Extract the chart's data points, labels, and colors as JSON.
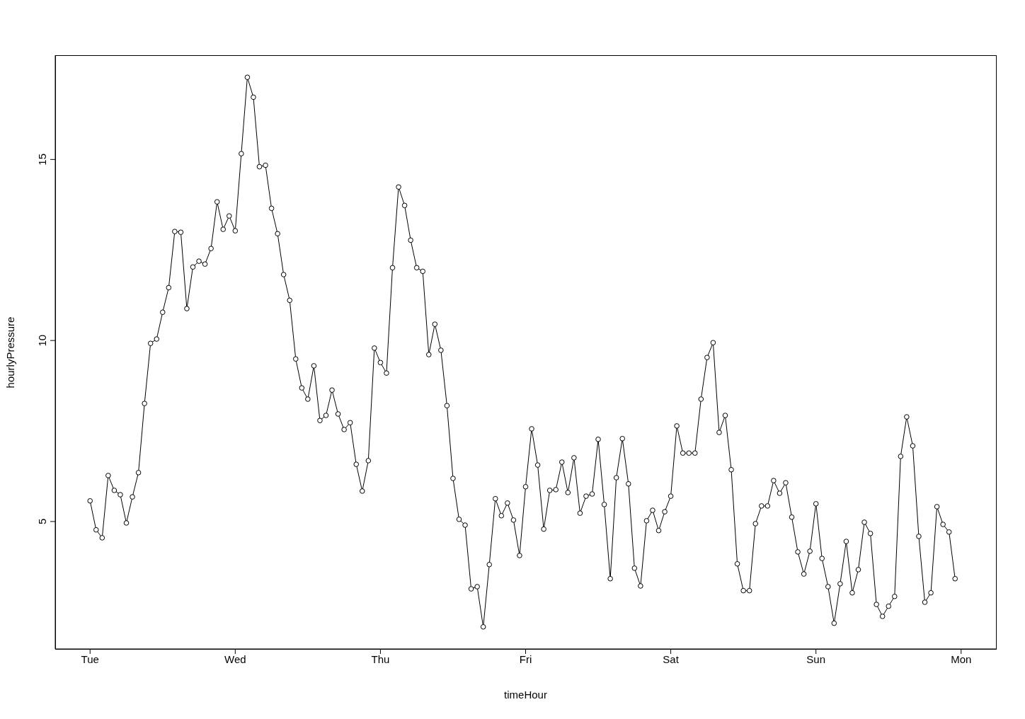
{
  "chart_data": {
    "type": "line",
    "xlabel": "timeHour",
    "ylabel": "hourlyPressure",
    "color": "#000000",
    "marker": "circle",
    "line_style": "solid",
    "categories": [
      "Tue",
      null,
      null,
      null,
      null,
      null,
      null,
      null,
      null,
      null,
      null,
      null,
      null,
      null,
      null,
      null,
      null,
      null,
      null,
      null,
      null,
      null,
      null,
      null,
      "Wed",
      null,
      null,
      null,
      null,
      null,
      null,
      null,
      null,
      null,
      null,
      null,
      null,
      null,
      null,
      null,
      null,
      null,
      null,
      null,
      null,
      null,
      null,
      null,
      "Thu",
      null,
      null,
      null,
      null,
      null,
      null,
      null,
      null,
      null,
      null,
      null,
      null,
      null,
      null,
      null,
      null,
      null,
      null,
      null,
      null,
      null,
      null,
      null,
      "Fri",
      null,
      null,
      null,
      null,
      null,
      null,
      null,
      null,
      null,
      null,
      null,
      null,
      null,
      null,
      null,
      null,
      null,
      null,
      null,
      null,
      null,
      null,
      null,
      "Sat",
      null,
      null,
      null,
      null,
      null,
      null,
      null,
      null,
      null,
      null,
      null,
      null,
      null,
      null,
      null,
      null,
      null,
      null,
      null,
      null,
      null,
      null,
      null,
      "Sun",
      null,
      null,
      null,
      null,
      null,
      null,
      null,
      null,
      null,
      null,
      null,
      null,
      null,
      null,
      null,
      null,
      null,
      null,
      null,
      null,
      null,
      null,
      null,
      "Mon"
    ],
    "values": [
      5.57,
      4.77,
      4.55,
      6.27,
      5.86,
      5.74,
      4.96,
      5.68,
      6.35,
      8.26,
      9.92,
      10.04,
      10.78,
      11.46,
      13.01,
      12.99,
      10.88,
      12.03,
      12.19,
      12.11,
      12.54,
      13.83,
      13.07,
      13.44,
      13.03,
      15.16,
      17.27,
      16.72,
      14.8,
      14.84,
      13.65,
      12.95,
      11.82,
      11.11,
      9.49,
      8.69,
      8.38,
      9.3,
      7.79,
      7.93,
      8.63,
      7.97,
      7.54,
      7.73,
      6.58,
      5.84,
      6.68,
      9.79,
      9.39,
      9.1,
      12.01,
      14.24,
      13.73,
      12.77,
      12.01,
      11.91,
      9.61,
      10.45,
      9.73,
      8.2,
      6.19,
      5.06,
      4.9,
      3.14,
      3.2,
      2.09,
      3.81,
      5.63,
      5.16,
      5.51,
      5.04,
      4.06,
      5.96,
      7.56,
      6.56,
      4.79,
      5.86,
      5.88,
      6.64,
      5.8,
      6.76,
      5.23,
      5.7,
      5.76,
      7.27,
      5.47,
      3.42,
      6.21,
      7.29,
      6.04,
      3.71,
      3.22,
      5.02,
      5.31,
      4.75,
      5.27,
      5.7,
      7.64,
      6.89,
      6.89,
      6.89,
      8.38,
      9.53,
      9.94,
      7.46,
      7.93,
      6.43,
      3.83,
      3.09,
      3.09,
      4.94,
      5.43,
      5.43,
      6.13,
      5.78,
      6.07,
      5.12,
      4.16,
      3.55,
      4.18,
      5.49,
      3.98,
      3.2,
      2.19,
      3.28,
      4.45,
      3.03,
      3.67,
      4.98,
      4.67,
      2.71,
      2.38,
      2.66,
      2.93,
      6.8,
      7.89,
      7.09,
      4.59,
      2.77,
      3.03,
      5.41,
      4.92,
      4.71,
      3.42,
      null
    ],
    "ylim": [
      1.48,
      17.88
    ],
    "yticks": [
      5,
      10,
      15
    ]
  }
}
